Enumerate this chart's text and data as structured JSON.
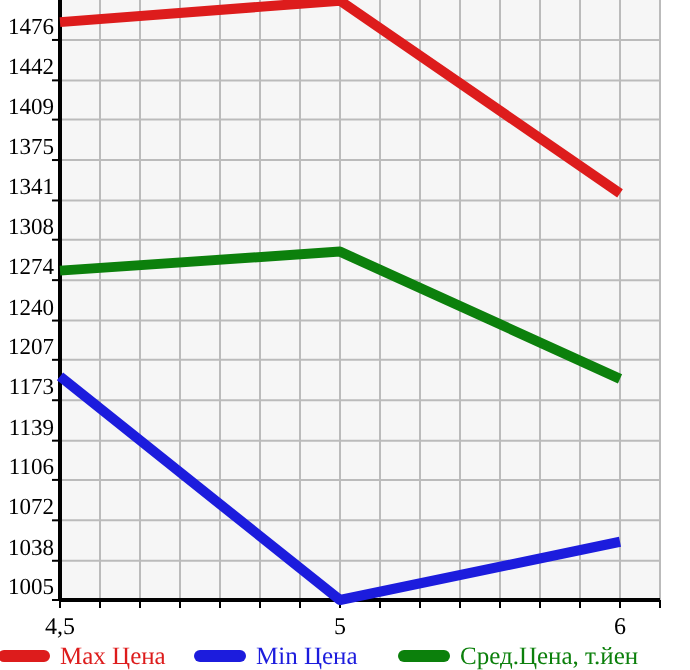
{
  "chart_data": {
    "type": "line",
    "categories": [
      "4,5",
      "5",
      "6"
    ],
    "series": [
      {
        "name": "Max Цена",
        "color": "#dd1c1c",
        "values": [
          1491,
          1509,
          1347
        ]
      },
      {
        "name": "Min Цена",
        "color": "#1c1cdd",
        "values": [
          1193,
          1005,
          1054
        ]
      },
      {
        "name": "Сред.Цена, т.йен",
        "color": "#0c800c",
        "values": [
          1282,
          1298,
          1191
        ]
      }
    ],
    "ylim": [
      1005,
      1509.6
    ],
    "yticks": [
      1005,
      1038,
      1072,
      1106,
      1139,
      1173,
      1207,
      1240,
      1274,
      1308,
      1341,
      1375,
      1409,
      1442,
      1476
    ],
    "grid": true,
    "legend": "bottom",
    "marker": "none",
    "line_style": "solid"
  }
}
